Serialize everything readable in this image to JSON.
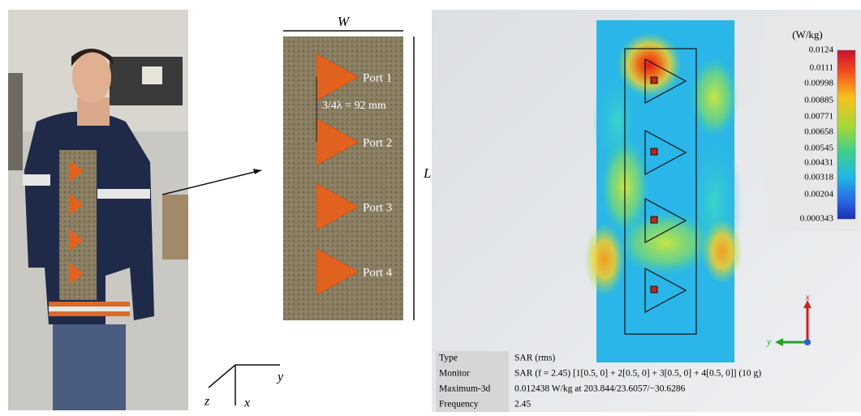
{
  "antenna": {
    "width_label": "W",
    "length_label": "L",
    "spacing_label": "3/4λ = 92 mm",
    "ports": [
      "Port 1",
      "Port 2",
      "Port 3",
      "Port 4"
    ]
  },
  "body_axes": {
    "y": "y",
    "z": "z",
    "x": "x"
  },
  "colorbar": {
    "title": "(W/kg)",
    "labels": [
      "0.0124",
      "0.0111",
      "0.00998",
      "0.00885",
      "0.00771",
      "0.00658",
      "0.00545",
      "0.00431",
      "0.00318",
      "0.00204",
      "0.000343"
    ]
  },
  "sim_axes": {
    "x": "x",
    "y": "y"
  },
  "info_table": {
    "rows": [
      [
        "Type",
        "SAR (rms)"
      ],
      [
        "Monitor",
        "SAR (f = 2.45) [1[0.5, 0] + 2[0.5, 0] + 3[0.5, 0] + 4[0.5, 0]] (10 g)"
      ],
      [
        "Maximum-3d",
        "0.012438 W/kg at 203.844/23.6057/−30.6286"
      ],
      [
        "Frequency",
        "2.45"
      ]
    ]
  }
}
